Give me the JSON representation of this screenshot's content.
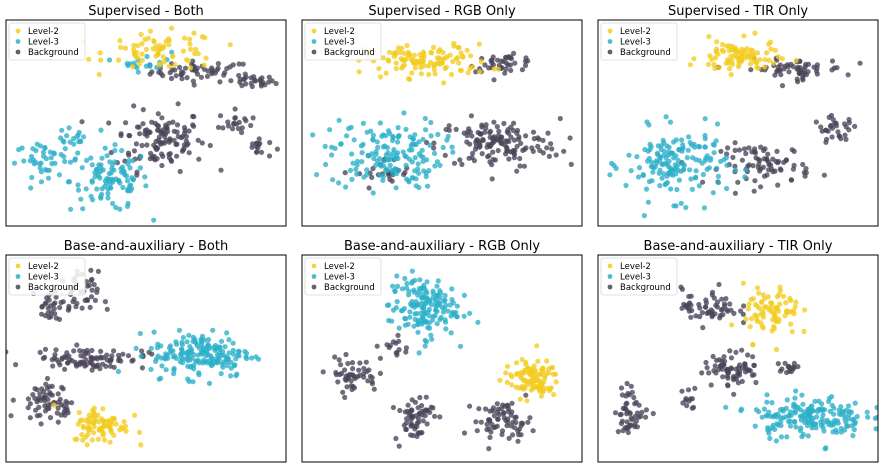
{
  "figure": {
    "legend_entries": [
      "Level-2",
      "Level-3",
      "Background"
    ],
    "colors": {
      "Level-2": "#f2cc1f",
      "Level-3": "#2bb0c9",
      "Background": "#4a4458"
    }
  },
  "chart_data": [
    {
      "type": "scatter",
      "title": "Supervised - Both",
      "legend": "top-left",
      "grid": false,
      "series": [
        {
          "name": "Level-2",
          "clusters": [
            {
              "cx": 0.56,
              "cy": 0.85,
              "rx": 0.2,
              "ry": 0.09,
              "n": 70
            }
          ]
        },
        {
          "name": "Level-3",
          "clusters": [
            {
              "cx": 0.5,
              "cy": 0.8,
              "rx": 0.09,
              "ry": 0.05,
              "n": 18
            },
            {
              "cx": 0.15,
              "cy": 0.32,
              "rx": 0.12,
              "ry": 0.08,
              "n": 45
            },
            {
              "cx": 0.37,
              "cy": 0.22,
              "rx": 0.14,
              "ry": 0.15,
              "n": 100
            },
            {
              "cx": 0.24,
              "cy": 0.42,
              "rx": 0.06,
              "ry": 0.06,
              "n": 15
            }
          ]
        },
        {
          "name": "Background",
          "clusters": [
            {
              "cx": 0.7,
              "cy": 0.75,
              "rx": 0.18,
              "ry": 0.05,
              "n": 55
            },
            {
              "cx": 0.88,
              "cy": 0.7,
              "rx": 0.08,
              "ry": 0.03,
              "n": 25
            },
            {
              "cx": 0.55,
              "cy": 0.42,
              "rx": 0.16,
              "ry": 0.15,
              "n": 120
            },
            {
              "cx": 0.82,
              "cy": 0.5,
              "rx": 0.06,
              "ry": 0.06,
              "n": 20
            },
            {
              "cx": 0.9,
              "cy": 0.38,
              "rx": 0.05,
              "ry": 0.05,
              "n": 15
            }
          ]
        }
      ]
    },
    {
      "type": "scatter",
      "title": "Supervised - RGB Only",
      "legend": "top-left",
      "grid": false,
      "series": [
        {
          "name": "Level-2",
          "clusters": [
            {
              "cx": 0.45,
              "cy": 0.8,
              "rx": 0.22,
              "ry": 0.08,
              "n": 110
            }
          ]
        },
        {
          "name": "Level-3",
          "clusters": [
            {
              "cx": 0.3,
              "cy": 0.35,
              "rx": 0.2,
              "ry": 0.17,
              "n": 160
            }
          ]
        },
        {
          "name": "Background",
          "clusters": [
            {
              "cx": 0.72,
              "cy": 0.79,
              "rx": 0.12,
              "ry": 0.04,
              "n": 40
            },
            {
              "cx": 0.7,
              "cy": 0.4,
              "rx": 0.22,
              "ry": 0.12,
              "n": 140
            },
            {
              "cx": 0.3,
              "cy": 0.25,
              "rx": 0.1,
              "ry": 0.08,
              "n": 25
            }
          ]
        }
      ]
    },
    {
      "type": "scatter",
      "title": "Supervised - TIR Only",
      "legend": "top-left",
      "grid": false,
      "series": [
        {
          "name": "Level-2",
          "clusters": [
            {
              "cx": 0.5,
              "cy": 0.82,
              "rx": 0.14,
              "ry": 0.08,
              "n": 90
            }
          ]
        },
        {
          "name": "Level-3",
          "clusters": [
            {
              "cx": 0.28,
              "cy": 0.3,
              "rx": 0.18,
              "ry": 0.17,
              "n": 160
            }
          ]
        },
        {
          "name": "Background",
          "clusters": [
            {
              "cx": 0.7,
              "cy": 0.76,
              "rx": 0.18,
              "ry": 0.05,
              "n": 60
            },
            {
              "cx": 0.6,
              "cy": 0.3,
              "rx": 0.16,
              "ry": 0.1,
              "n": 80
            },
            {
              "cx": 0.85,
              "cy": 0.47,
              "rx": 0.08,
              "ry": 0.06,
              "n": 30
            }
          ]
        }
      ]
    },
    {
      "type": "scatter",
      "title": "Base-and-auxiliary  - Both",
      "legend": "top-left",
      "grid": false,
      "series": [
        {
          "name": "Level-2",
          "clusters": [
            {
              "cx": 0.34,
              "cy": 0.18,
              "rx": 0.1,
              "ry": 0.09,
              "n": 80
            }
          ]
        },
        {
          "name": "Level-3",
          "clusters": [
            {
              "cx": 0.7,
              "cy": 0.52,
              "rx": 0.18,
              "ry": 0.11,
              "n": 180
            }
          ]
        },
        {
          "name": "Background",
          "clusters": [
            {
              "cx": 0.3,
              "cy": 0.5,
              "rx": 0.2,
              "ry": 0.05,
              "n": 90
            },
            {
              "cx": 0.12,
              "cy": 0.3,
              "rx": 0.08,
              "ry": 0.1,
              "n": 50
            },
            {
              "cx": 0.25,
              "cy": 0.8,
              "rx": 0.08,
              "ry": 0.12,
              "n": 50
            },
            {
              "cx": 0.15,
              "cy": 0.75,
              "rx": 0.04,
              "ry": 0.08,
              "n": 20
            },
            {
              "cx": 0.2,
              "cy": 0.25,
              "rx": 0.05,
              "ry": 0.05,
              "n": 15
            }
          ]
        }
      ]
    },
    {
      "type": "scatter",
      "title": "Base-and-auxiliary - RGB Only",
      "legend": "top-left",
      "grid": false,
      "series": [
        {
          "name": "Level-2",
          "clusters": [
            {
              "cx": 0.82,
              "cy": 0.4,
              "rx": 0.1,
              "ry": 0.09,
              "n": 100
            }
          ]
        },
        {
          "name": "Level-3",
          "clusters": [
            {
              "cx": 0.43,
              "cy": 0.75,
              "rx": 0.12,
              "ry": 0.15,
              "n": 160
            }
          ]
        },
        {
          "name": "Background",
          "clusters": [
            {
              "cx": 0.18,
              "cy": 0.42,
              "rx": 0.09,
              "ry": 0.08,
              "n": 50
            },
            {
              "cx": 0.4,
              "cy": 0.22,
              "rx": 0.07,
              "ry": 0.12,
              "n": 60
            },
            {
              "cx": 0.72,
              "cy": 0.2,
              "rx": 0.1,
              "ry": 0.09,
              "n": 70
            },
            {
              "cx": 0.33,
              "cy": 0.55,
              "rx": 0.05,
              "ry": 0.06,
              "n": 15
            }
          ]
        }
      ]
    },
    {
      "type": "scatter",
      "title": "Base-and-auxiliary - TIR Only",
      "legend": "top-left",
      "grid": false,
      "series": [
        {
          "name": "Level-2",
          "clusters": [
            {
              "cx": 0.62,
              "cy": 0.72,
              "rx": 0.1,
              "ry": 0.13,
              "n": 80
            }
          ]
        },
        {
          "name": "Level-3",
          "clusters": [
            {
              "cx": 0.75,
              "cy": 0.22,
              "rx": 0.2,
              "ry": 0.1,
              "n": 180
            }
          ]
        },
        {
          "name": "Background",
          "clusters": [
            {
              "cx": 0.4,
              "cy": 0.75,
              "rx": 0.1,
              "ry": 0.09,
              "n": 60
            },
            {
              "cx": 0.48,
              "cy": 0.45,
              "rx": 0.1,
              "ry": 0.08,
              "n": 70
            },
            {
              "cx": 0.12,
              "cy": 0.25,
              "rx": 0.06,
              "ry": 0.12,
              "n": 50
            },
            {
              "cx": 0.33,
              "cy": 0.3,
              "rx": 0.03,
              "ry": 0.06,
              "n": 12
            },
            {
              "cx": 0.68,
              "cy": 0.45,
              "rx": 0.05,
              "ry": 0.04,
              "n": 15
            }
          ]
        }
      ]
    }
  ]
}
